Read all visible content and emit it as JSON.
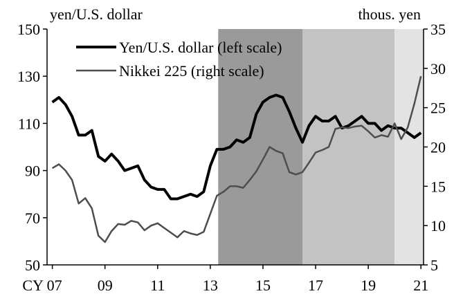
{
  "chart_data": {
    "type": "line",
    "y_label": "yen/U.S. dollar",
    "y2_label": "thous. yen",
    "x": [
      2007,
      2007.25,
      2007.5,
      2007.75,
      2008,
      2008.25,
      2008.5,
      2008.75,
      2009,
      2009.25,
      2009.5,
      2009.75,
      2010,
      2010.25,
      2010.5,
      2010.75,
      2011,
      2011.25,
      2011.5,
      2011.75,
      2012,
      2012.25,
      2012.5,
      2012.75,
      2013,
      2013.25,
      2013.5,
      2013.75,
      2014,
      2014.25,
      2014.5,
      2014.75,
      2015,
      2015.25,
      2015.5,
      2015.75,
      2016,
      2016.25,
      2016.5,
      2016.75,
      2017,
      2017.25,
      2017.5,
      2017.75,
      2018,
      2018.25,
      2018.5,
      2018.75,
      2019,
      2019.25,
      2019.5,
      2019.75,
      2020,
      2020.25,
      2020.5,
      2020.75,
      2021
    ],
    "series": [
      {
        "name": "Yen/U.S. dollar (left scale)",
        "color": "#000000",
        "width": 4,
        "values": [
          119,
          121,
          118,
          113,
          105,
          105,
          107,
          96,
          94,
          97,
          94,
          90,
          91,
          92,
          86,
          83,
          82,
          82,
          78,
          78,
          79,
          80,
          79,
          81,
          92,
          99,
          99,
          100,
          103,
          102,
          104,
          114,
          119,
          121,
          122,
          121,
          115,
          108,
          102,
          109,
          113,
          111,
          111,
          113,
          108,
          109,
          111,
          113,
          110,
          110,
          107,
          109,
          108,
          108,
          106,
          104,
          106
        ]
      },
      {
        "name": "Nikkei 225 (right scale)",
        "color": "#4d4d4d",
        "width": 2.5,
        "axis": "y2",
        "values": [
          17.3,
          17.8,
          17.0,
          15.8,
          12.8,
          13.5,
          12.2,
          8.7,
          7.9,
          9.3,
          10.2,
          10.1,
          10.6,
          10.4,
          9.4,
          10.0,
          10.3,
          9.7,
          9.1,
          8.5,
          9.3,
          9.0,
          8.8,
          9.2,
          11.5,
          13.8,
          14.3,
          15.0,
          15.0,
          14.8,
          15.8,
          16.9,
          18.4,
          20.0,
          19.5,
          19.2,
          16.8,
          16.5,
          16.8,
          18.0,
          19.3,
          19.6,
          20.0,
          22.3,
          22.5,
          22.4,
          22.6,
          22.7,
          22.0,
          21.2,
          21.5,
          21.3,
          23.0,
          21.0,
          22.5,
          25.5,
          29.0
        ]
      }
    ],
    "shaded_periods": [
      {
        "start": 2013.3,
        "end": 2016.5,
        "color": "#9a9a9a"
      },
      {
        "start": 2016.5,
        "end": 2020.0,
        "color": "#c3c3c3"
      },
      {
        "start": 2020.0,
        "end": 2021.1,
        "color": "#e3e3e3"
      }
    ],
    "xlim": [
      2006.8,
      2021.1
    ],
    "xticks": [
      {
        "value": 2007,
        "label": "CY 07"
      },
      {
        "value": 2009,
        "label": "09"
      },
      {
        "value": 2011,
        "label": "11"
      },
      {
        "value": 2013,
        "label": "13"
      },
      {
        "value": 2015,
        "label": "15"
      },
      {
        "value": 2017,
        "label": "17"
      },
      {
        "value": 2019,
        "label": "19"
      },
      {
        "value": 2021,
        "label": "21"
      }
    ],
    "ylim": [
      50,
      150
    ],
    "yticks": [
      50,
      70,
      90,
      110,
      130,
      150
    ],
    "y2lim": [
      5,
      35
    ],
    "y2ticks": [
      5,
      10,
      15,
      20,
      25,
      30,
      35
    ],
    "legend": "upper-left"
  }
}
